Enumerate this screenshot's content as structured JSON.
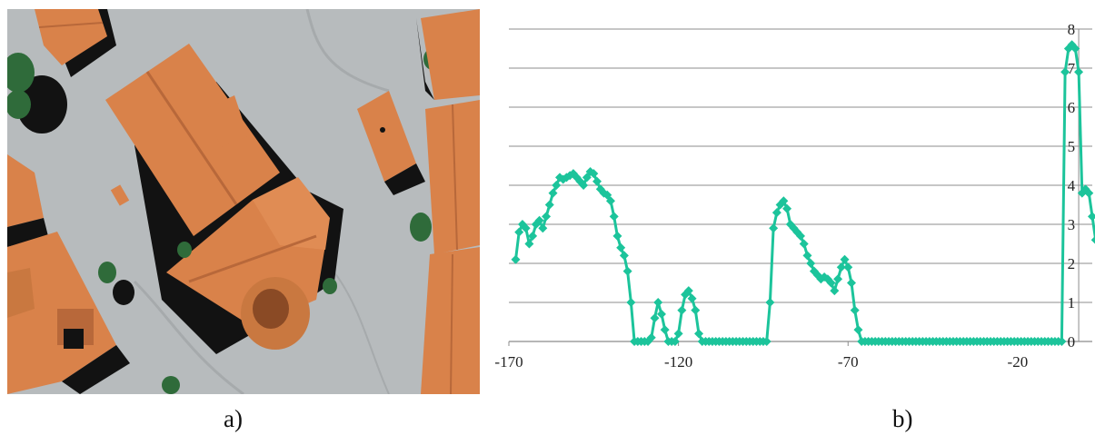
{
  "panels": {
    "a_label": "a)",
    "b_label": "b)"
  },
  "colors": {
    "series": "#1cc49b",
    "grid": "#8c8c8c",
    "roof": "#d9824a",
    "roof_dark": "#b8683a",
    "ground": "#b7bbbd",
    "shadow": "#121212",
    "tree": "#2f6b3a"
  },
  "chart_data": {
    "type": "line",
    "marker": "diamond",
    "grid": "horizontal",
    "xlim": [
      -170,
      2
    ],
    "ylim": [
      0,
      8
    ],
    "x_ticks": [
      -170,
      -120,
      -70,
      -20
    ],
    "y_ticks": [
      0,
      1,
      2,
      3,
      4,
      5,
      6,
      7,
      8
    ],
    "x_tick_labels": [
      "-170",
      "-120",
      "-70",
      "-20"
    ],
    "y_tick_labels": [
      "0",
      "1",
      "2",
      "3",
      "4",
      "5",
      "6",
      "7",
      "8"
    ],
    "series": [
      {
        "points": [
          [
            -168,
            2.1
          ],
          [
            -167,
            2.8
          ],
          [
            -166,
            3.0
          ],
          [
            -165,
            2.9
          ],
          [
            -164,
            2.5
          ],
          [
            -163,
            2.7
          ],
          [
            -162,
            3.0
          ],
          [
            -161,
            3.1
          ],
          [
            -160,
            2.9
          ],
          [
            -159,
            3.2
          ],
          [
            -158,
            3.5
          ],
          [
            -157,
            3.8
          ],
          [
            -156,
            4.0
          ],
          [
            -155,
            4.2
          ],
          [
            -154,
            4.15
          ],
          [
            -153,
            4.2
          ],
          [
            -152,
            4.25
          ],
          [
            -151,
            4.3
          ],
          [
            -150,
            4.2
          ],
          [
            -149,
            4.1
          ],
          [
            -148,
            4.0
          ],
          [
            -147,
            4.2
          ],
          [
            -146,
            4.35
          ],
          [
            -145,
            4.3
          ],
          [
            -144,
            4.1
          ],
          [
            -143,
            3.9
          ],
          [
            -142,
            3.8
          ],
          [
            -141,
            3.75
          ],
          [
            -140,
            3.6
          ],
          [
            -139,
            3.2
          ],
          [
            -138,
            2.7
          ],
          [
            -137,
            2.4
          ],
          [
            -136,
            2.2
          ],
          [
            -135,
            1.8
          ],
          [
            -134,
            1.0
          ],
          [
            -133,
            0
          ],
          [
            -132,
            0
          ],
          [
            -131,
            0
          ],
          [
            -130,
            0
          ],
          [
            -129,
            0
          ],
          [
            -128,
            0.1
          ],
          [
            -127,
            0.6
          ],
          [
            -126,
            1.0
          ],
          [
            -125,
            0.7
          ],
          [
            -124,
            0.3
          ],
          [
            -123,
            0
          ],
          [
            -122,
            0
          ],
          [
            -121,
            0
          ],
          [
            -120,
            0.2
          ],
          [
            -119,
            0.8
          ],
          [
            -118,
            1.2
          ],
          [
            -117,
            1.3
          ],
          [
            -116,
            1.1
          ],
          [
            -115,
            0.8
          ],
          [
            -114,
            0.2
          ],
          [
            -113,
            0
          ],
          [
            -112,
            0
          ],
          [
            -111,
            0
          ],
          [
            -110,
            0
          ],
          [
            -109,
            0
          ],
          [
            -108,
            0
          ],
          [
            -107,
            0
          ],
          [
            -106,
            0
          ],
          [
            -105,
            0
          ],
          [
            -104,
            0
          ],
          [
            -103,
            0
          ],
          [
            -102,
            0
          ],
          [
            -101,
            0
          ],
          [
            -100,
            0
          ],
          [
            -99,
            0
          ],
          [
            -98,
            0
          ],
          [
            -97,
            0
          ],
          [
            -96,
            0
          ],
          [
            -95,
            0
          ],
          [
            -94,
            0
          ],
          [
            -93,
            1.0
          ],
          [
            -92,
            2.9
          ],
          [
            -91,
            3.3
          ],
          [
            -90,
            3.5
          ],
          [
            -89,
            3.6
          ],
          [
            -88,
            3.4
          ],
          [
            -87,
            3.0
          ],
          [
            -86,
            2.9
          ],
          [
            -85,
            2.8
          ],
          [
            -84,
            2.7
          ],
          [
            -83,
            2.5
          ],
          [
            -82,
            2.2
          ],
          [
            -81,
            2.0
          ],
          [
            -80,
            1.8
          ],
          [
            -79,
            1.7
          ],
          [
            -78,
            1.6
          ],
          [
            -77,
            1.65
          ],
          [
            -76,
            1.6
          ],
          [
            -75,
            1.5
          ],
          [
            -74,
            1.3
          ],
          [
            -73,
            1.6
          ],
          [
            -72,
            1.9
          ],
          [
            -71,
            2.1
          ],
          [
            -70,
            1.9
          ],
          [
            -69,
            1.5
          ],
          [
            -68,
            0.8
          ],
          [
            -67,
            0.3
          ],
          [
            -66,
            0
          ],
          [
            -65,
            0
          ],
          [
            -64,
            0
          ],
          [
            -63,
            0
          ],
          [
            -62,
            0
          ],
          [
            -61,
            0
          ],
          [
            -60,
            0
          ],
          [
            -59,
            0
          ],
          [
            -58,
            0
          ],
          [
            -57,
            0
          ],
          [
            -56,
            0
          ],
          [
            -55,
            0
          ],
          [
            -54,
            0
          ],
          [
            -53,
            0
          ],
          [
            -52,
            0
          ],
          [
            -51,
            0
          ],
          [
            -50,
            0
          ],
          [
            -49,
            0
          ],
          [
            -48,
            0
          ],
          [
            -47,
            0
          ],
          [
            -46,
            0
          ],
          [
            -45,
            0
          ],
          [
            -44,
            0
          ],
          [
            -43,
            0
          ],
          [
            -42,
            0
          ],
          [
            -41,
            0
          ],
          [
            -40,
            0
          ],
          [
            -39,
            0
          ],
          [
            -38,
            0
          ],
          [
            -37,
            0
          ],
          [
            -36,
            0
          ],
          [
            -35,
            0
          ],
          [
            -34,
            0
          ],
          [
            -33,
            0
          ],
          [
            -32,
            0
          ],
          [
            -31,
            0
          ],
          [
            -30,
            0
          ],
          [
            -29,
            0
          ],
          [
            -28,
            0
          ],
          [
            -27,
            0
          ],
          [
            -26,
            0
          ],
          [
            -25,
            0
          ],
          [
            -24,
            0
          ],
          [
            -23,
            0
          ],
          [
            -22,
            0
          ],
          [
            -21,
            0
          ],
          [
            -20,
            0
          ],
          [
            -19,
            0
          ],
          [
            -18,
            0
          ],
          [
            -17,
            0
          ],
          [
            -16,
            0
          ],
          [
            -15,
            0
          ],
          [
            -14,
            0
          ],
          [
            -13,
            0
          ],
          [
            -12,
            0
          ],
          [
            -11,
            0
          ],
          [
            -10,
            0
          ],
          [
            -9,
            0
          ],
          [
            -8,
            0
          ],
          [
            -7,
            0
          ],
          [
            -6,
            6.9
          ],
          [
            -5,
            7.5
          ],
          [
            -4,
            7.6
          ],
          [
            -3,
            7.5
          ],
          [
            -2,
            6.9
          ],
          [
            -1,
            3.8
          ],
          [
            0,
            3.9
          ],
          [
            1,
            3.8
          ],
          [
            2,
            3.2
          ],
          [
            3,
            2.6
          ]
        ]
      }
    ]
  }
}
